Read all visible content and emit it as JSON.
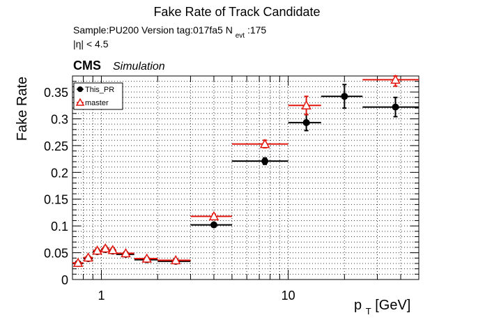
{
  "chart_data": {
    "type": "scatter",
    "title": "Fake Rate of Track Candidate",
    "subtitle_lines": [
      {
        "text": "Sample:PU200   Version tag:017fa5  N",
        "sub": "evt",
        "suffix": ":175"
      },
      {
        "text": "|η| < 4.5"
      }
    ],
    "cms_label": "CMS",
    "simulation_label": "Simulation",
    "ylabel": "Fake Rate",
    "xlabel": {
      "base": "p",
      "sub": "T",
      "suffix": " [GeV]"
    },
    "xscale": "log",
    "xlim": [
      0.7,
      50
    ],
    "ylim": [
      0,
      0.38
    ],
    "xticks": [
      {
        "value": 1,
        "label": "1"
      },
      {
        "value": 10,
        "label": "10"
      }
    ],
    "yticks": [
      {
        "value": 0,
        "label": "0"
      },
      {
        "value": 0.05,
        "label": "0.05"
      },
      {
        "value": 0.1,
        "label": "0.1"
      },
      {
        "value": 0.15,
        "label": "0.15"
      },
      {
        "value": 0.2,
        "label": "0.2"
      },
      {
        "value": 0.25,
        "label": "0.25"
      },
      {
        "value": 0.3,
        "label": "0.3"
      },
      {
        "value": 0.35,
        "label": "0.35"
      }
    ],
    "grid": true,
    "legend_position": "top-left",
    "series": [
      {
        "name": "This_PR",
        "color": "#000000",
        "marker": "filled-circle",
        "points": [
          {
            "x": 0.75,
            "xerr": [
              0.7,
              0.8
            ],
            "y": 0.03,
            "yerr": 0.003
          },
          {
            "x": 0.85,
            "xerr": [
              0.8,
              0.9
            ],
            "y": 0.039,
            "yerr": 0.003
          },
          {
            "x": 0.95,
            "xerr": [
              0.9,
              1.0
            ],
            "y": 0.052,
            "yerr": 0.004
          },
          {
            "x": 1.05,
            "xerr": [
              1.0,
              1.1
            ],
            "y": 0.056,
            "yerr": 0.004
          },
          {
            "x": 1.15,
            "xerr": [
              1.1,
              1.2
            ],
            "y": 0.053,
            "yerr": 0.004
          },
          {
            "x": 1.35,
            "xerr": [
              1.2,
              1.5
            ],
            "y": 0.047,
            "yerr": 0.003
          },
          {
            "x": 1.75,
            "xerr": [
              1.5,
              2.0
            ],
            "y": 0.037,
            "yerr": 0.003
          },
          {
            "x": 2.5,
            "xerr": [
              2.0,
              3.0
            ],
            "y": 0.034,
            "yerr": 0.003
          },
          {
            "x": 4.0,
            "xerr": [
              3.0,
              5.0
            ],
            "y": 0.102,
            "yerr": 0.003
          },
          {
            "x": 7.5,
            "xerr": [
              5.0,
              10.0
            ],
            "y": 0.221,
            "yerr": 0.006
          },
          {
            "x": 12.5,
            "xerr": [
              10.0,
              15.0
            ],
            "y": 0.293,
            "yerr": 0.015
          },
          {
            "x": 20.0,
            "xerr": [
              15.0,
              25.0
            ],
            "y": 0.342,
            "yerr": 0.022
          },
          {
            "x": 37.5,
            "xerr": [
              25.0,
              50.0
            ],
            "y": 0.322,
            "yerr": 0.018
          }
        ]
      },
      {
        "name": "master",
        "color": "#e3160f",
        "marker": "open-triangle",
        "points": [
          {
            "x": 0.75,
            "xerr": [
              0.7,
              0.8
            ],
            "y": 0.031,
            "yerr": 0.003
          },
          {
            "x": 0.85,
            "xerr": [
              0.8,
              0.9
            ],
            "y": 0.041,
            "yerr": 0.003
          },
          {
            "x": 0.95,
            "xerr": [
              0.9,
              1.0
            ],
            "y": 0.054,
            "yerr": 0.004
          },
          {
            "x": 1.05,
            "xerr": [
              1.0,
              1.1
            ],
            "y": 0.058,
            "yerr": 0.004
          },
          {
            "x": 1.15,
            "xerr": [
              1.1,
              1.2
            ],
            "y": 0.055,
            "yerr": 0.004
          },
          {
            "x": 1.35,
            "xerr": [
              1.2,
              1.5
            ],
            "y": 0.049,
            "yerr": 0.003
          },
          {
            "x": 1.75,
            "xerr": [
              1.5,
              2.0
            ],
            "y": 0.039,
            "yerr": 0.003
          },
          {
            "x": 2.5,
            "xerr": [
              2.0,
              3.0
            ],
            "y": 0.036,
            "yerr": 0.003
          },
          {
            "x": 4.0,
            "xerr": [
              3.0,
              5.0
            ],
            "y": 0.118,
            "yerr": 0.004
          },
          {
            "x": 7.5,
            "xerr": [
              5.0,
              10.0
            ],
            "y": 0.253,
            "yerr": 0.007
          },
          {
            "x": 12.5,
            "xerr": [
              10.0,
              15.0
            ],
            "y": 0.325,
            "yerr": 0.017
          },
          {
            "x": 37.5,
            "xerr": [
              25.0,
              50.0
            ],
            "y": 0.373,
            "yerr": 0.012
          }
        ]
      }
    ]
  }
}
